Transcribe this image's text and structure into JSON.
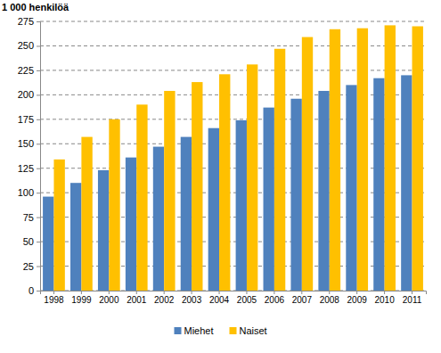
{
  "chart_data": {
    "type": "bar",
    "y_label": "1 000 henkilöä",
    "categories": [
      "1998",
      "1999",
      "2000",
      "2001",
      "2002",
      "2003",
      "2004",
      "2005",
      "2006",
      "2007",
      "2008",
      "2009",
      "2010",
      "2011"
    ],
    "series": [
      {
        "name": "Miehet",
        "color": "#4f81bd",
        "values": [
          96,
          110,
          123,
          136,
          147,
          157,
          166,
          174,
          187,
          196,
          204,
          210,
          217,
          220
        ]
      },
      {
        "name": "Naiset",
        "color": "#ffc000",
        "values": [
          134,
          157,
          175,
          190,
          204,
          213,
          221,
          231,
          247,
          259,
          267,
          268,
          271,
          270
        ]
      }
    ],
    "ylim": [
      0,
      275
    ],
    "yticks": [
      0,
      25,
      50,
      75,
      100,
      125,
      150,
      175,
      200,
      225,
      250,
      275
    ],
    "grid": true,
    "legend": "bottom"
  }
}
